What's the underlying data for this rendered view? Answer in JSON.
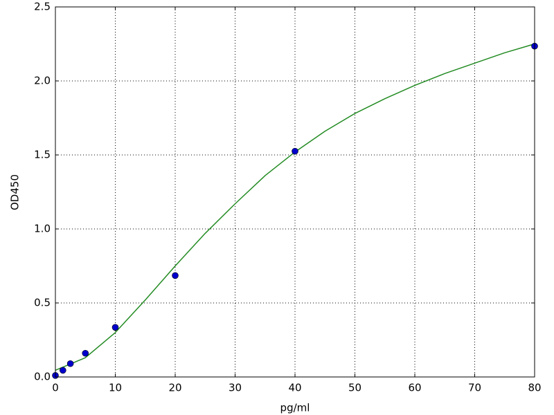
{
  "chart_data": {
    "type": "scatter",
    "xlabel": "pg/ml",
    "ylabel": "OD450",
    "xlim": [
      0,
      80
    ],
    "ylim": [
      0,
      2.5
    ],
    "xticks": [
      0,
      10,
      20,
      30,
      40,
      50,
      60,
      70,
      80
    ],
    "yticks": [
      {
        "value": 0,
        "label": "0.0"
      },
      0.5,
      {
        "value": 1,
        "label": "1.0"
      },
      1.5,
      {
        "value": 2,
        "label": "2.0"
      },
      2.5
    ],
    "grid": true,
    "series": [
      {
        "style": "line",
        "color": "#228b22",
        "x": [
          0,
          5,
          10,
          15,
          20,
          25,
          30,
          35,
          40,
          45,
          50,
          55,
          60,
          65,
          70,
          75,
          80
        ],
        "values": [
          0.045,
          0.13,
          0.3,
          0.52,
          0.75,
          0.97,
          1.17,
          1.36,
          1.52,
          1.66,
          1.78,
          1.88,
          1.97,
          2.05,
          2.12,
          2.19,
          2.25
        ]
      },
      {
        "style": "marker",
        "color": "#0000cc",
        "x": [
          0,
          1.25,
          2.5,
          5,
          10,
          20,
          40,
          80
        ],
        "values": [
          0.01,
          0.045,
          0.09,
          0.16,
          0.335,
          0.685,
          1.525,
          2.235
        ]
      }
    ]
  }
}
